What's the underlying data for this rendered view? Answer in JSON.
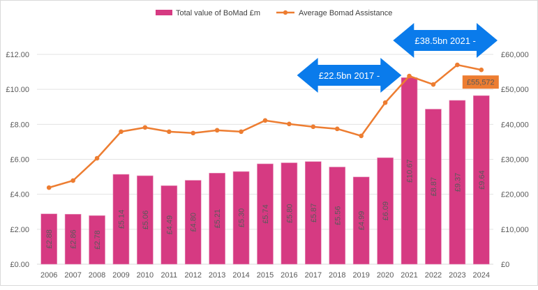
{
  "chart_data": {
    "type": "bar",
    "title": "",
    "xlabel": "",
    "ylabel": "",
    "categories": [
      "2006",
      "2007",
      "2008",
      "2009",
      "2010",
      "2011",
      "2012",
      "2013",
      "2014",
      "2015",
      "2016",
      "2017",
      "2018",
      "2019",
      "2020",
      "2021",
      "2022",
      "2023",
      "2024"
    ],
    "series": [
      {
        "name": "Total value of BoMad £m",
        "type": "bar",
        "axis": "left",
        "color": "#D63A82",
        "values": [
          2.88,
          2.86,
          2.78,
          5.14,
          5.06,
          4.49,
          4.8,
          5.21,
          5.3,
          5.74,
          5.8,
          5.87,
          5.56,
          4.99,
          6.09,
          10.67,
          8.87,
          9.37,
          9.64
        ],
        "data_labels": [
          "£2.88",
          "£2.86",
          "£2.78",
          "£5.14",
          "£5.06",
          "£4.49",
          "£4.80",
          "£5.21",
          "£5.30",
          "£5.74",
          "£5.80",
          "£5.87",
          "£5.56",
          "£4.99",
          "£6.09",
          "£10.67",
          "£8.87",
          "£9.37",
          "£9.64"
        ]
      },
      {
        "name": "Average Bomad Assistance",
        "type": "line",
        "axis": "right",
        "color": "#ED7D31",
        "values": [
          21900,
          23900,
          30300,
          37900,
          39100,
          37900,
          37500,
          38300,
          37900,
          41100,
          40100,
          39300,
          38700,
          36700,
          46200,
          53800,
          51400,
          57000,
          55572
        ]
      }
    ],
    "y_left": {
      "ylim": [
        0,
        12
      ],
      "ticks": [
        0,
        2,
        4,
        6,
        8,
        10,
        12
      ],
      "tick_labels": [
        "£0.00",
        "£2.00",
        "£4.00",
        "£6.00",
        "£8.00",
        "£10.00",
        "£12.00"
      ]
    },
    "y_right": {
      "ylim": [
        0,
        60000
      ],
      "ticks": [
        0,
        10000,
        20000,
        30000,
        40000,
        50000,
        60000
      ],
      "tick_labels": [
        "£0",
        "£10,000",
        "£20,000",
        "£30,000",
        "£40,000",
        "£50,000",
        "£60,000"
      ]
    },
    "grid": true,
    "legend": {
      "placement": "top-center",
      "entries": [
        "Total value of BoMad £m",
        "Average Bomad Assistance"
      ]
    },
    "annotations": [
      {
        "type": "double-arrow",
        "text": "£22.5bn 2017 -",
        "color": "#0A7BEB",
        "from_year": "2017",
        "to_year": "2020"
      },
      {
        "type": "double-arrow",
        "text": "£38.5bn 2021 -",
        "color": "#0A7BEB",
        "from_year": "2021",
        "to_year": "2024"
      },
      {
        "type": "callout",
        "text": "£55,572",
        "color": "#ED7D31",
        "year": "2024",
        "series": "Average Bomad Assistance"
      }
    ]
  }
}
